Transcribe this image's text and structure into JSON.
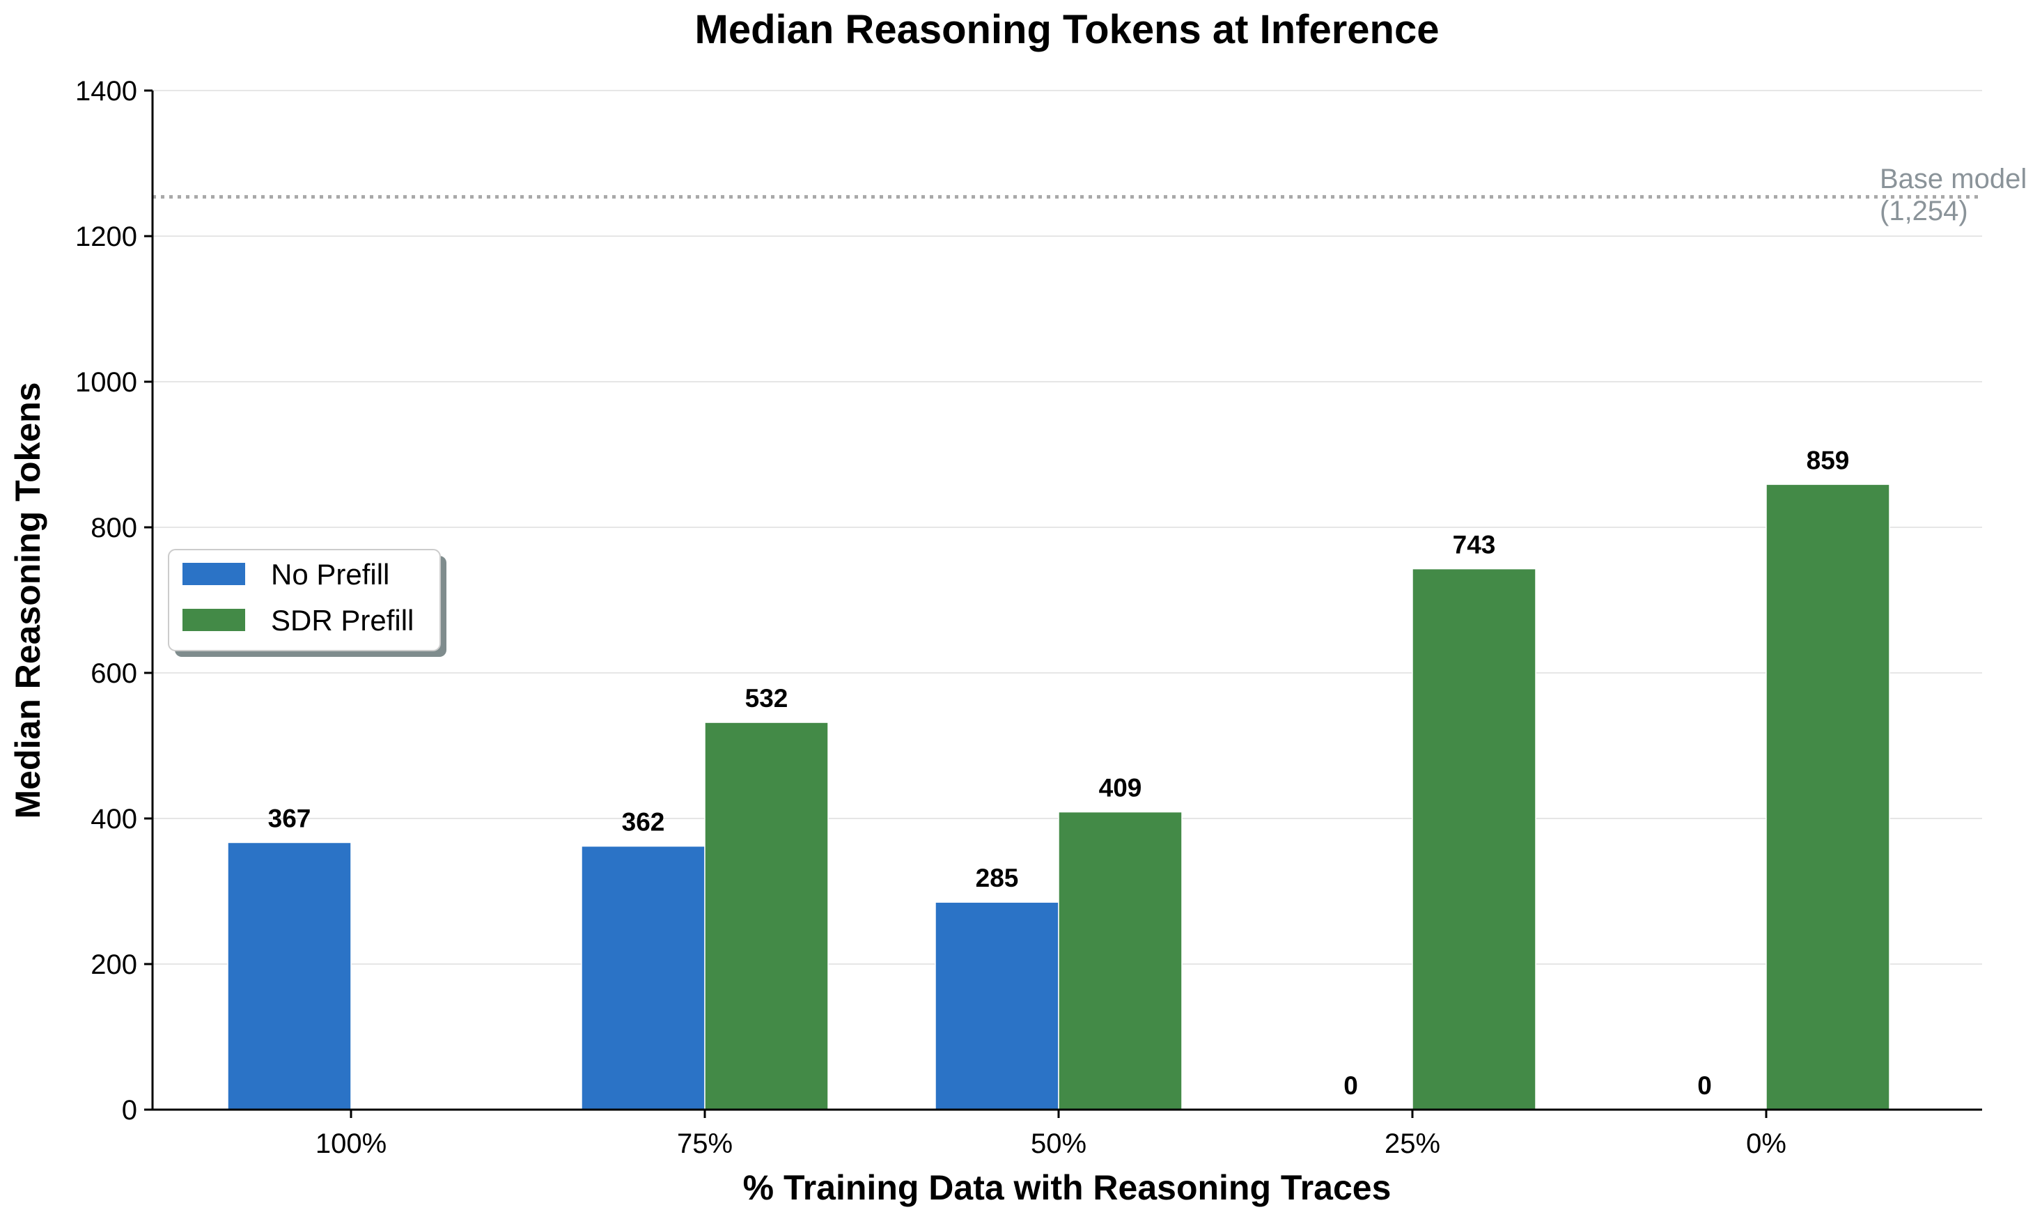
{
  "chart_data": {
    "type": "bar",
    "title": "Median Reasoning Tokens at Inference",
    "xlabel": "% Training Data with Reasoning Traces",
    "ylabel": "Median Reasoning Tokens",
    "categories": [
      "100%",
      "75%",
      "50%",
      "25%",
      "0%"
    ],
    "series": [
      {
        "name": "No Prefill",
        "color": "#2b73c6",
        "values": [
          367,
          362,
          285,
          0,
          0
        ],
        "labels": [
          "367",
          "362",
          "285",
          "0",
          "0"
        ]
      },
      {
        "name": "SDR Prefill",
        "color": "#438a47",
        "values": [
          null,
          532,
          409,
          743,
          859
        ],
        "labels": [
          null,
          "532",
          "409",
          "743",
          "859"
        ]
      }
    ],
    "ylim": [
      0,
      1400
    ],
    "yticks": [
      0,
      200,
      400,
      600,
      800,
      1000,
      1200,
      1400
    ],
    "ytick_labels": [
      "0",
      "200",
      "400",
      "600",
      "800",
      "1000",
      "1200",
      "1400"
    ],
    "reference_line": {
      "value": 1254,
      "label_line1": "Base model",
      "label_line2": "(1,254)",
      "style": "dotted",
      "color": "#a8a8a8"
    },
    "grid": "horizontal",
    "legend_position": "center-left"
  }
}
